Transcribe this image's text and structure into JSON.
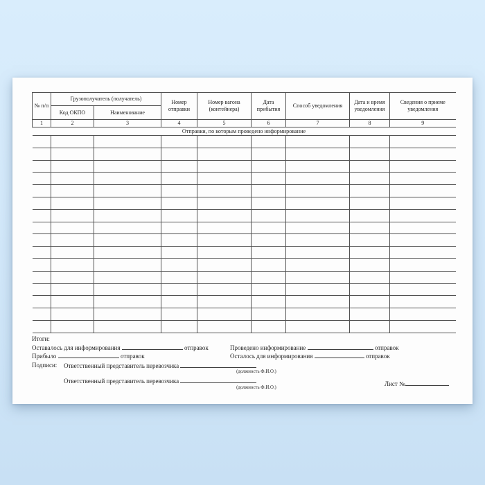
{
  "colors": {
    "background_top": "#d9edfc",
    "background_bottom": "#c8e0f4",
    "paper": "#fdfdfd",
    "table_line": "#515151",
    "text": "#1f1f1f"
  },
  "header": {
    "col_no": "№ п/п",
    "group_consignee": "Грузополучатель (получатель)",
    "col_okpo": "Код ОКПО",
    "col_name": "Наименование",
    "col_dispatch_no": "Номер отправки",
    "col_wagon_no": "Номер вагона (контейнера)",
    "col_arrival_date": "Дата прибытия",
    "col_notify_method": "Способ уведомления",
    "col_notify_datetime": "Дата и время уведомления",
    "col_notify_receipt": "Сведения о приеме уведомления",
    "numbers": [
      "1",
      "2",
      "3",
      "4",
      "5",
      "6",
      "7",
      "8",
      "9"
    ]
  },
  "band": {
    "label": "Отправки, по которым проведено информирование"
  },
  "body": {
    "empty_rows": 16,
    "columns": 9
  },
  "footer": {
    "totals_title": "Итоги:",
    "left_line1_label": "Оставалось для информирования",
    "left_line1_suffix": "отправок",
    "left_line2_label": "Прибыло",
    "left_line2_suffix": "отправок",
    "right_line1_label": "Проведено информирование",
    "right_line1_suffix": "отправок",
    "right_line2_label": "Осталось для информирования",
    "right_line2_suffix": "отправок",
    "signatures_title": "Подписи:",
    "signature_role_1": "Ответственный представитель перевозчика",
    "signature_hint_1": "(должность Ф.И.О.)",
    "signature_role_2": "Ответственный представитель перевозчика",
    "signature_hint_2": "(должность Ф.И.О.)",
    "sheet_label": "Лист №"
  }
}
